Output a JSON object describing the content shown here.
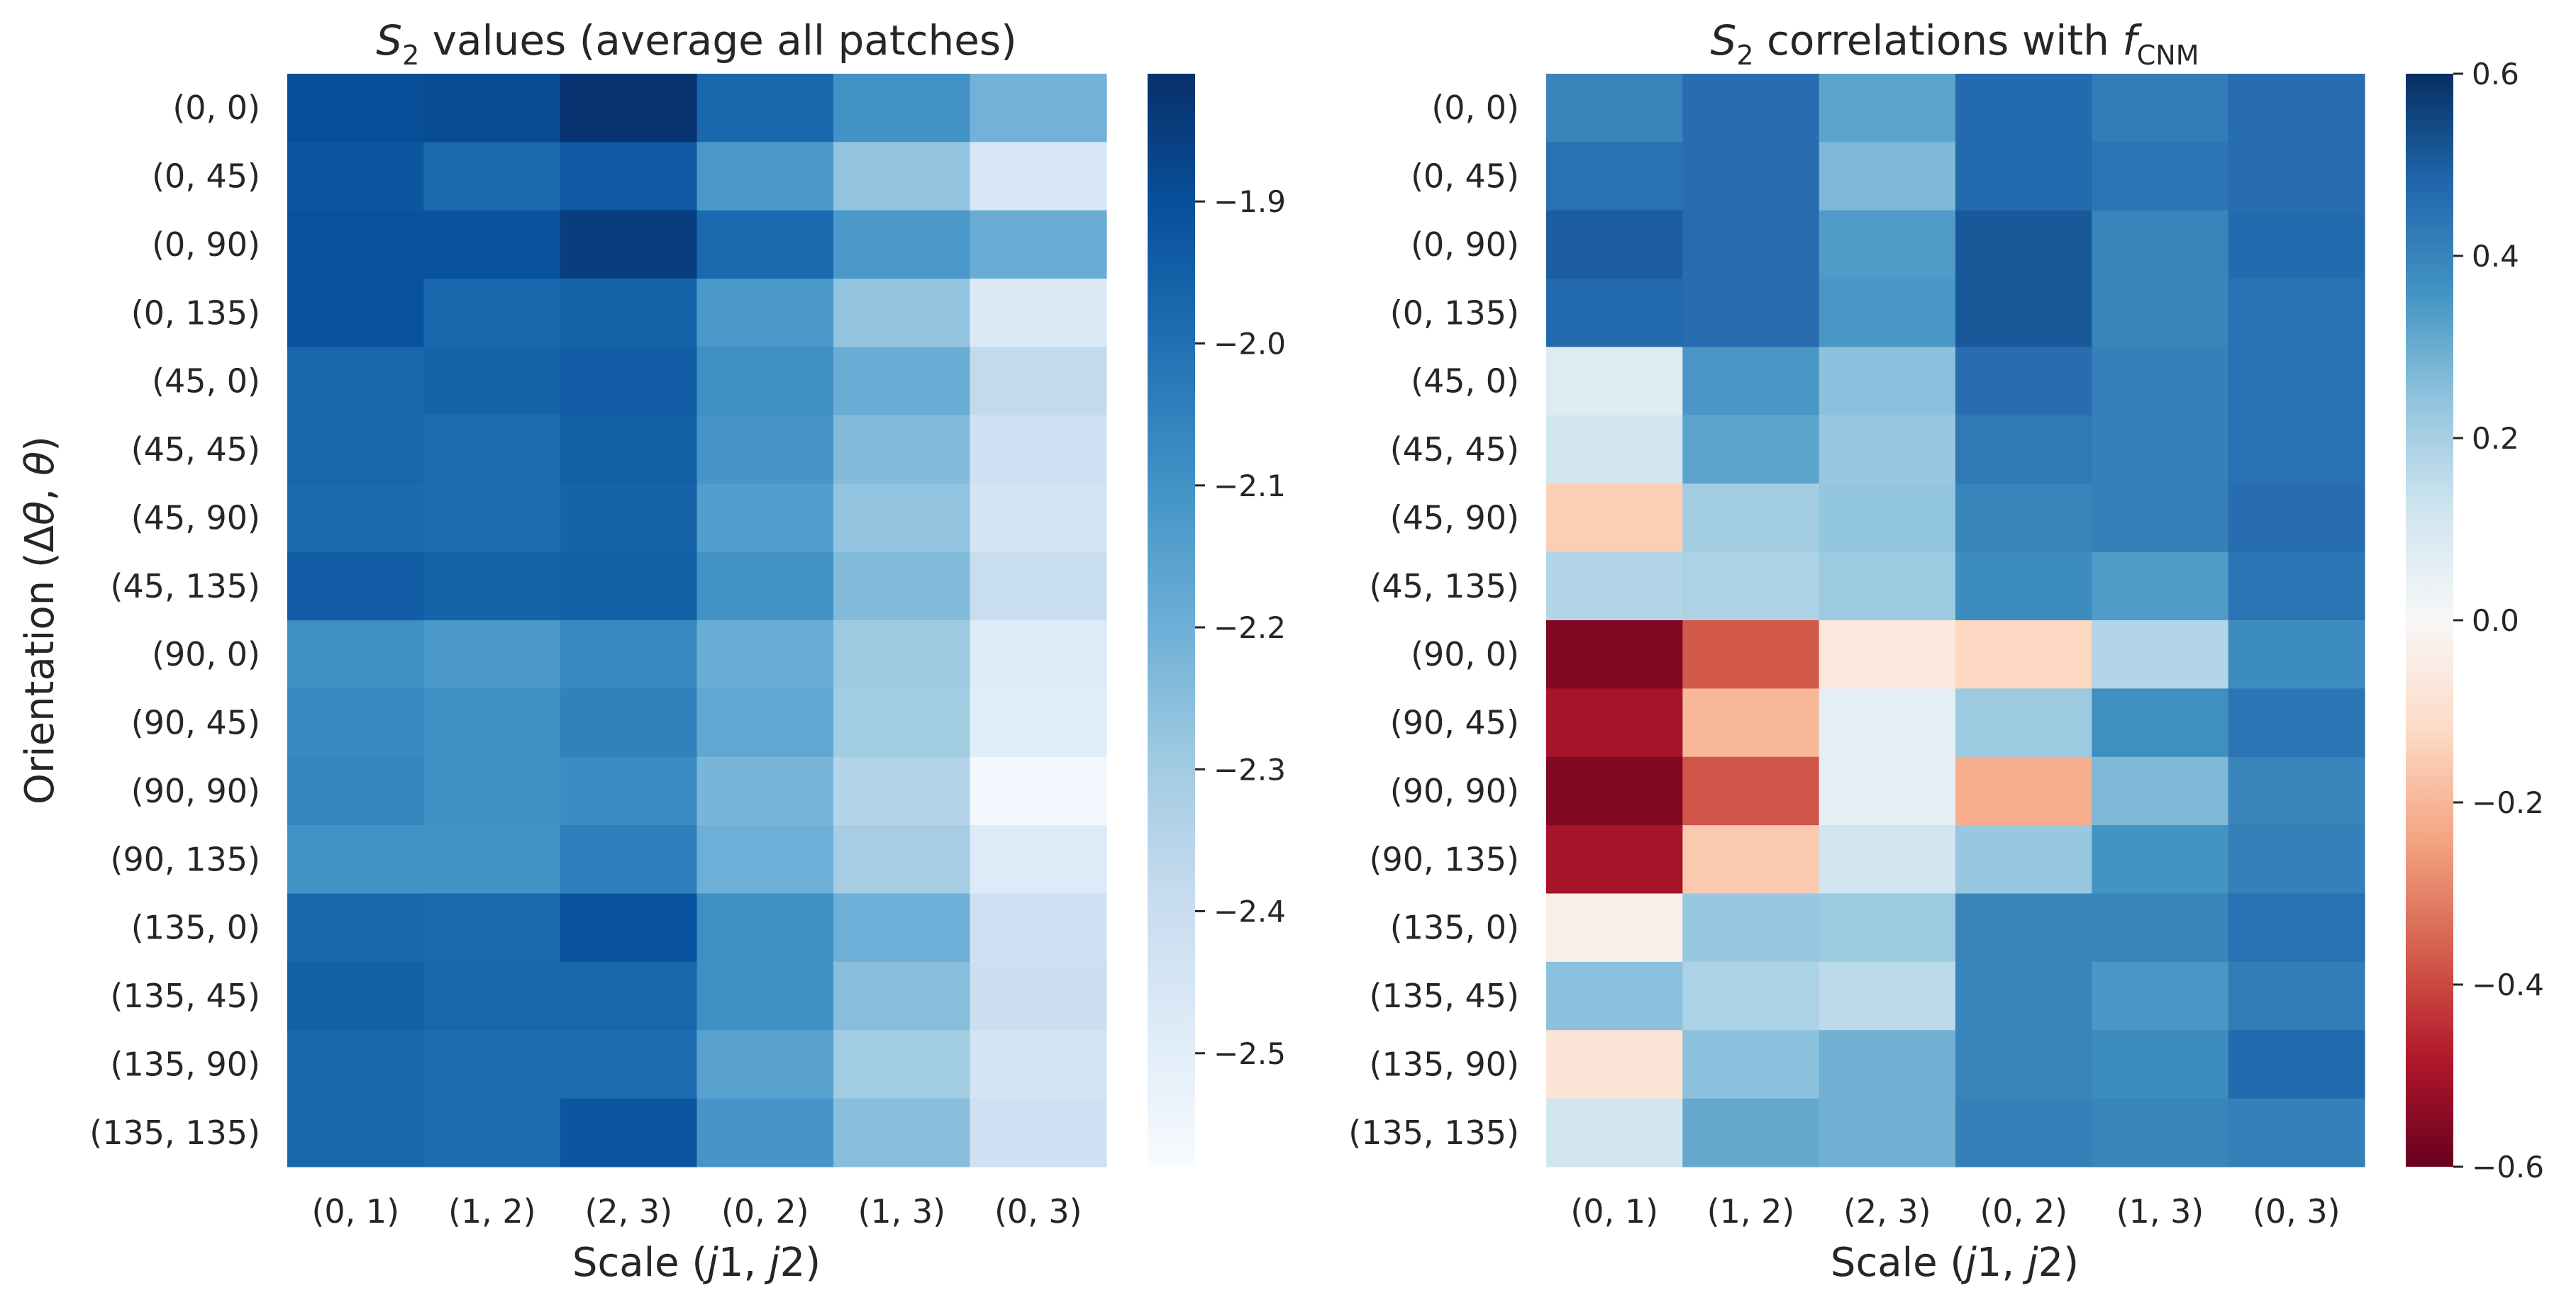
{
  "chart_data": [
    {
      "type": "heatmap",
      "title": "S₂ values (average all patches)",
      "xlabel": "Scale (j1, j2)",
      "ylabel": "Orientation (Δθ, θ)",
      "x_categories": [
        "(0, 1)",
        "(1, 2)",
        "(2, 3)",
        "(0, 2)",
        "(1, 3)",
        "(0, 3)"
      ],
      "y_categories": [
        "(0, 0)",
        "(0, 45)",
        "(0, 90)",
        "(0, 135)",
        "(45, 0)",
        "(45, 45)",
        "(45, 90)",
        "(45, 135)",
        "(90, 0)",
        "(90, 45)",
        "(90, 90)",
        "(90, 135)",
        "(135, 0)",
        "(135, 45)",
        "(135, 90)",
        "(135, 135)"
      ],
      "colormap": "Blues",
      "vmin": -2.58,
      "vmax": -1.81,
      "colorbar_ticks": [
        -1.9,
        -2.0,
        -2.1,
        -2.2,
        -2.3,
        -2.4,
        -2.5
      ],
      "colorbar_tick_labels": [
        "−1.9",
        "−2.0",
        "−2.1",
        "−2.2",
        "−2.3",
        "−2.4",
        "−2.5"
      ],
      "values": [
        [
          -1.9,
          -1.89,
          -1.82,
          -1.97,
          -2.1,
          -2.21
        ],
        [
          -1.92,
          -1.98,
          -1.93,
          -2.12,
          -2.27,
          -2.46
        ],
        [
          -1.91,
          -1.91,
          -1.85,
          -1.98,
          -2.12,
          -2.19
        ],
        [
          -1.91,
          -1.97,
          -1.96,
          -2.12,
          -2.27,
          -2.47
        ],
        [
          -1.97,
          -1.96,
          -1.94,
          -2.09,
          -2.19,
          -2.38
        ],
        [
          -1.97,
          -1.99,
          -1.95,
          -2.11,
          -2.24,
          -2.42
        ],
        [
          -1.98,
          -1.99,
          -1.96,
          -2.14,
          -2.27,
          -2.44
        ],
        [
          -1.94,
          -1.96,
          -1.95,
          -2.1,
          -2.24,
          -2.4
        ],
        [
          -2.09,
          -2.12,
          -2.07,
          -2.19,
          -2.29,
          -2.48
        ],
        [
          -2.07,
          -2.09,
          -2.05,
          -2.17,
          -2.3,
          -2.49
        ],
        [
          -2.06,
          -2.09,
          -2.08,
          -2.22,
          -2.34,
          -2.56
        ],
        [
          -2.1,
          -2.1,
          -2.04,
          -2.2,
          -2.31,
          -2.48
        ],
        [
          -1.97,
          -1.98,
          -1.91,
          -2.09,
          -2.2,
          -2.42
        ],
        [
          -1.95,
          -1.97,
          -1.97,
          -2.09,
          -2.25,
          -2.41
        ],
        [
          -1.97,
          -1.99,
          -1.99,
          -2.15,
          -2.3,
          -2.44
        ],
        [
          -1.97,
          -1.99,
          -1.92,
          -2.11,
          -2.25,
          -2.42
        ]
      ]
    },
    {
      "type": "heatmap",
      "title": "S₂ correlations with f_CNM",
      "xlabel": "Scale (j1, j2)",
      "ylabel": "",
      "x_categories": [
        "(0, 1)",
        "(1, 2)",
        "(2, 3)",
        "(0, 2)",
        "(1, 3)",
        "(0, 3)"
      ],
      "y_categories": [
        "(0, 0)",
        "(0, 45)",
        "(0, 90)",
        "(0, 135)",
        "(45, 0)",
        "(45, 45)",
        "(45, 90)",
        "(45, 135)",
        "(90, 0)",
        "(90, 45)",
        "(90, 90)",
        "(90, 135)",
        "(135, 0)",
        "(135, 45)",
        "(135, 90)",
        "(135, 135)"
      ],
      "colormap": "RdBu",
      "vmin": -0.6,
      "vmax": 0.6,
      "colorbar_ticks": [
        0.6,
        0.4,
        0.2,
        0.0,
        -0.2,
        -0.4,
        -0.6
      ],
      "colorbar_tick_labels": [
        "0.6",
        "0.4",
        "0.2",
        "0.0",
        "−0.2",
        "−0.4",
        "−0.6"
      ],
      "values": [
        [
          0.4,
          0.46,
          0.32,
          0.47,
          0.42,
          0.46
        ],
        [
          0.45,
          0.46,
          0.27,
          0.47,
          0.44,
          0.46
        ],
        [
          0.5,
          0.46,
          0.34,
          0.51,
          0.4,
          0.47
        ],
        [
          0.47,
          0.46,
          0.35,
          0.51,
          0.4,
          0.45
        ],
        [
          0.08,
          0.35,
          0.25,
          0.46,
          0.41,
          0.45
        ],
        [
          0.12,
          0.32,
          0.23,
          0.43,
          0.41,
          0.45
        ],
        [
          -0.15,
          0.21,
          0.24,
          0.4,
          0.41,
          0.46
        ],
        [
          0.18,
          0.19,
          0.22,
          0.38,
          0.34,
          0.44
        ],
        [
          -0.56,
          -0.37,
          -0.07,
          -0.13,
          0.18,
          0.38
        ],
        [
          -0.5,
          -0.2,
          0.06,
          0.22,
          0.37,
          0.44
        ],
        [
          -0.56,
          -0.38,
          0.05,
          -0.22,
          0.27,
          0.4
        ],
        [
          -0.5,
          -0.16,
          0.12,
          0.23,
          0.36,
          0.41
        ],
        [
          -0.03,
          0.23,
          0.22,
          0.4,
          0.4,
          0.45
        ],
        [
          0.25,
          0.19,
          0.16,
          0.4,
          0.35,
          0.42
        ],
        [
          -0.08,
          0.25,
          0.29,
          0.4,
          0.38,
          0.47
        ],
        [
          0.12,
          0.31,
          0.29,
          0.41,
          0.4,
          0.41
        ]
      ]
    }
  ]
}
